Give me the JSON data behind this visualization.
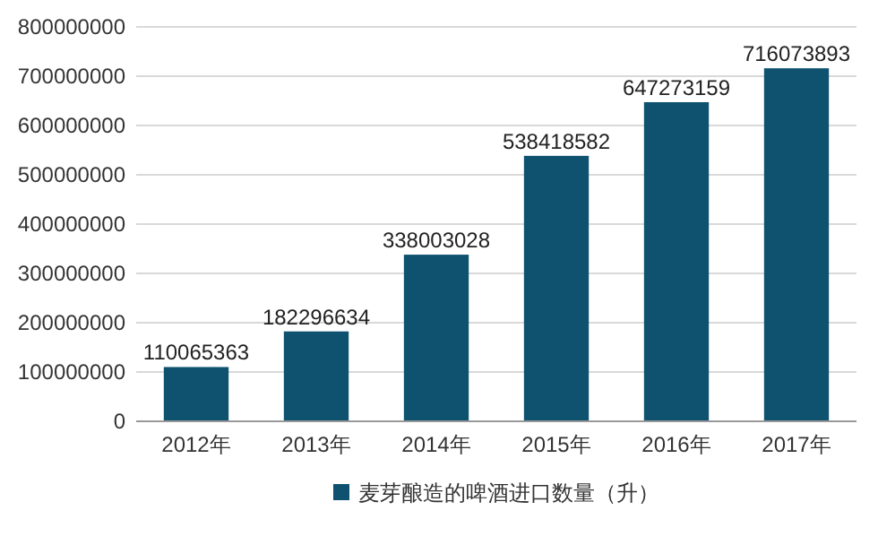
{
  "chart_data": {
    "type": "bar",
    "categories": [
      "2012年",
      "2013年",
      "2014年",
      "2015年",
      "2016年",
      "2017年"
    ],
    "series": [
      {
        "name": "麦芽酿造的啤酒进口数量（升）",
        "color": "#0e5270",
        "values": [
          110065363,
          182296634,
          338003028,
          538418582,
          647273159,
          716073893
        ]
      }
    ],
    "ylim": [
      0,
      800000000
    ],
    "yticks": [
      0,
      100000000,
      200000000,
      300000000,
      400000000,
      500000000,
      600000000,
      700000000,
      800000000
    ],
    "grid": "y",
    "legend": "bottom",
    "data_labels": true
  }
}
